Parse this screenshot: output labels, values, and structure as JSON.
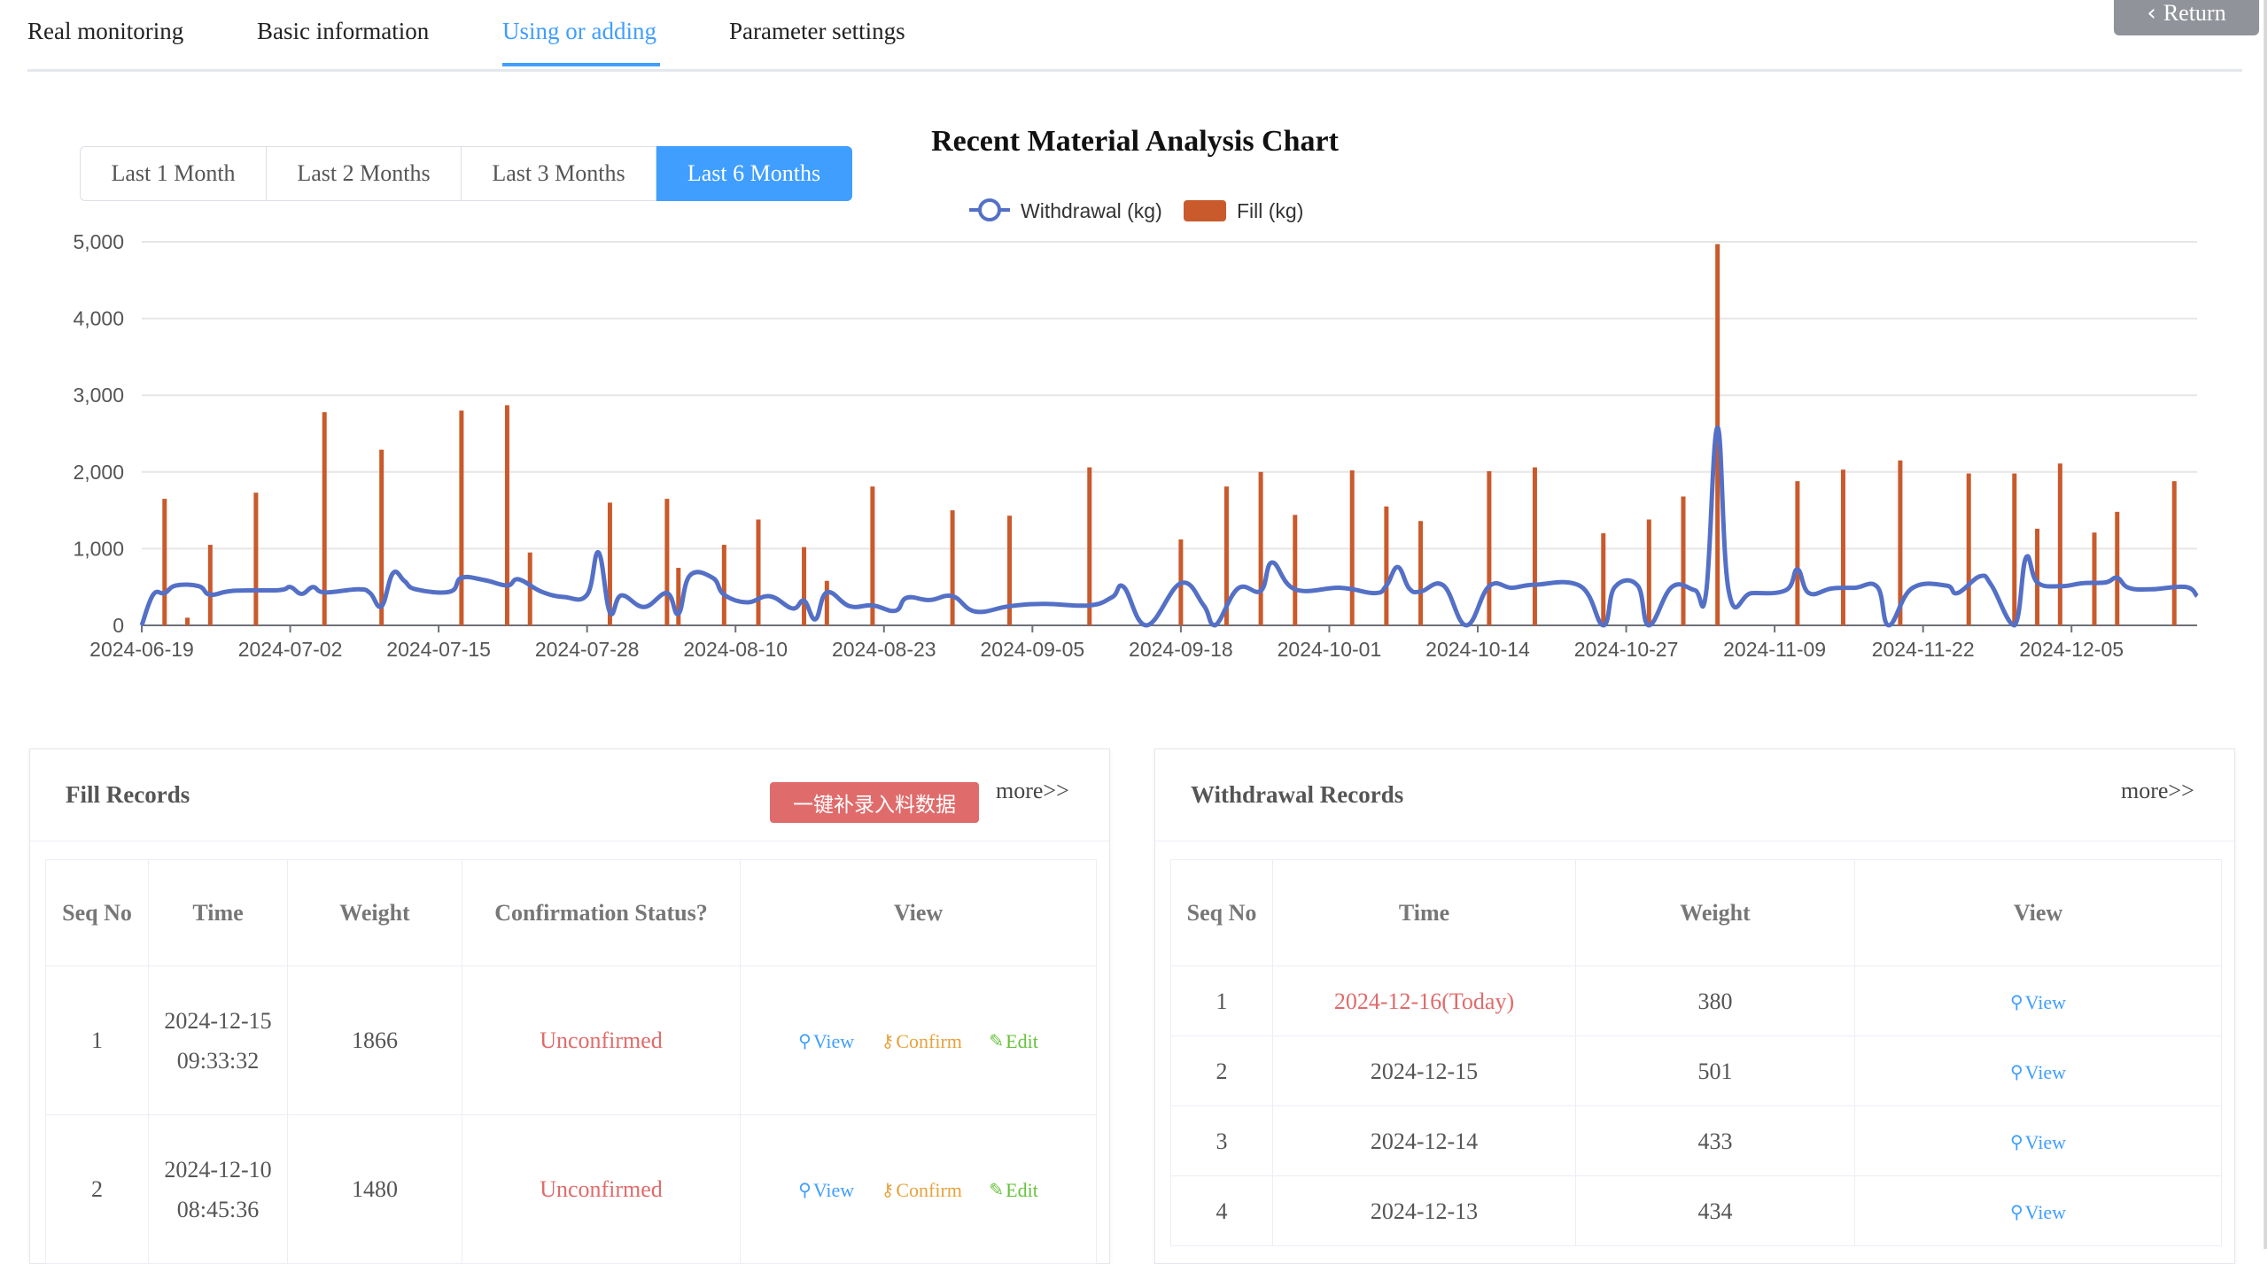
{
  "tabs": [
    {
      "label": "Real monitoring"
    },
    {
      "label": "Basic information"
    },
    {
      "label": "Using or adding"
    },
    {
      "label": "Parameter settings"
    }
  ],
  "return_label": "Return",
  "range_buttons": [
    "Last 1 Month",
    "Last 2 Months",
    "Last 3 Months",
    "Last 6 Months"
  ],
  "active_range": "Last 6 Months",
  "chart_data": {
    "type": "bar+line",
    "title": "Recent Material Analysis Chart",
    "legend": [
      "Withdrawal (kg)",
      "Fill (kg)"
    ],
    "legend_position": "top-center",
    "grid": true,
    "ylim": [
      0,
      5000
    ],
    "yticks": [
      "0",
      "1,000",
      "2,000",
      "3,000",
      "4,000",
      "5,000"
    ],
    "x_range": [
      "2024-06-19",
      "2024-12-16"
    ],
    "xticks": [
      "2024-06-19",
      "2024-07-02",
      "2024-07-15",
      "2024-07-28",
      "2024-08-10",
      "2024-08-23",
      "2024-09-05",
      "2024-09-18",
      "2024-10-01",
      "2024-10-14",
      "2024-10-27",
      "2024-11-09",
      "2024-11-22",
      "2024-12-05"
    ],
    "colors": {
      "withdrawal": "#5470c6",
      "fill": "#c95a2c"
    },
    "series": [
      {
        "name": "Fill (kg)",
        "type": "bar",
        "points": [
          [
            "2024-06-21",
            1650
          ],
          [
            "2024-06-23",
            100
          ],
          [
            "2024-06-25",
            1050
          ],
          [
            "2024-06-29",
            1730
          ],
          [
            "2024-07-05",
            2780
          ],
          [
            "2024-07-10",
            2290
          ],
          [
            "2024-07-17",
            2800
          ],
          [
            "2024-07-21",
            2870
          ],
          [
            "2024-07-23",
            950
          ],
          [
            "2024-07-30",
            1600
          ],
          [
            "2024-08-04",
            1650
          ],
          [
            "2024-08-05",
            750
          ],
          [
            "2024-08-09",
            1050
          ],
          [
            "2024-08-12",
            1380
          ],
          [
            "2024-08-16",
            1020
          ],
          [
            "2024-08-18",
            580
          ],
          [
            "2024-08-22",
            1810
          ],
          [
            "2024-08-29",
            1500
          ],
          [
            "2024-09-03",
            1430
          ],
          [
            "2024-09-10",
            2060
          ],
          [
            "2024-09-18",
            1120
          ],
          [
            "2024-09-22",
            1810
          ],
          [
            "2024-09-25",
            2000
          ],
          [
            "2024-09-28",
            1440
          ],
          [
            "2024-10-03",
            2020
          ],
          [
            "2024-10-06",
            1550
          ],
          [
            "2024-10-09",
            1360
          ],
          [
            "2024-10-15",
            2010
          ],
          [
            "2024-10-19",
            2060
          ],
          [
            "2024-10-25",
            1200
          ],
          [
            "2024-10-29",
            1380
          ],
          [
            "2024-11-01",
            1680
          ],
          [
            "2024-11-04",
            4970
          ],
          [
            "2024-11-11",
            1880
          ],
          [
            "2024-11-15",
            2030
          ],
          [
            "2024-11-20",
            2150
          ],
          [
            "2024-11-26",
            1980
          ],
          [
            "2024-11-30",
            1980
          ],
          [
            "2024-12-02",
            1260
          ],
          [
            "2024-12-04",
            2110
          ],
          [
            "2024-12-07",
            1210
          ],
          [
            "2024-12-09",
            1480
          ],
          [
            "2024-12-14",
            1880
          ]
        ]
      },
      {
        "name": "Withdrawal (kg)",
        "type": "line",
        "points": [
          [
            "2024-06-19",
            0
          ],
          [
            "2024-06-20",
            400
          ],
          [
            "2024-06-21",
            420
          ],
          [
            "2024-06-22",
            520
          ],
          [
            "2024-06-24",
            510
          ],
          [
            "2024-06-25",
            400
          ],
          [
            "2024-06-27",
            450
          ],
          [
            "2024-07-01",
            460
          ],
          [
            "2024-07-02",
            500
          ],
          [
            "2024-07-03",
            410
          ],
          [
            "2024-07-04",
            500
          ],
          [
            "2024-07-05",
            430
          ],
          [
            "2024-07-08",
            470
          ],
          [
            "2024-07-09",
            420
          ],
          [
            "2024-07-10",
            250
          ],
          [
            "2024-07-11",
            680
          ],
          [
            "2024-07-12",
            580
          ],
          [
            "2024-07-13",
            470
          ],
          [
            "2024-07-16",
            440
          ],
          [
            "2024-07-17",
            620
          ],
          [
            "2024-07-19",
            590
          ],
          [
            "2024-07-21",
            520
          ],
          [
            "2024-07-22",
            600
          ],
          [
            "2024-07-24",
            440
          ],
          [
            "2024-07-26",
            370
          ],
          [
            "2024-07-28",
            400
          ],
          [
            "2024-07-29",
            950
          ],
          [
            "2024-07-30",
            170
          ],
          [
            "2024-07-31",
            390
          ],
          [
            "2024-08-02",
            240
          ],
          [
            "2024-08-04",
            420
          ],
          [
            "2024-08-05",
            150
          ],
          [
            "2024-08-06",
            650
          ],
          [
            "2024-08-08",
            620
          ],
          [
            "2024-08-09",
            400
          ],
          [
            "2024-08-11",
            300
          ],
          [
            "2024-08-13",
            380
          ],
          [
            "2024-08-15",
            220
          ],
          [
            "2024-08-16",
            320
          ],
          [
            "2024-08-17",
            80
          ],
          [
            "2024-08-18",
            430
          ],
          [
            "2024-08-20",
            250
          ],
          [
            "2024-08-22",
            260
          ],
          [
            "2024-08-24",
            190
          ],
          [
            "2024-08-25",
            360
          ],
          [
            "2024-08-27",
            330
          ],
          [
            "2024-08-29",
            380
          ],
          [
            "2024-08-31",
            180
          ],
          [
            "2024-09-03",
            250
          ],
          [
            "2024-09-06",
            280
          ],
          [
            "2024-09-10",
            260
          ],
          [
            "2024-09-12",
            370
          ],
          [
            "2024-09-13",
            500
          ],
          [
            "2024-09-15",
            0
          ],
          [
            "2024-09-18",
            550
          ],
          [
            "2024-09-20",
            260
          ],
          [
            "2024-09-21",
            0
          ],
          [
            "2024-09-23",
            480
          ],
          [
            "2024-09-25",
            450
          ],
          [
            "2024-09-26",
            820
          ],
          [
            "2024-09-28",
            470
          ],
          [
            "2024-10-02",
            490
          ],
          [
            "2024-10-05",
            420
          ],
          [
            "2024-10-06",
            520
          ],
          [
            "2024-10-07",
            760
          ],
          [
            "2024-10-08",
            480
          ],
          [
            "2024-10-09",
            440
          ],
          [
            "2024-10-11",
            520
          ],
          [
            "2024-10-13",
            0
          ],
          [
            "2024-10-15",
            510
          ],
          [
            "2024-10-17",
            490
          ],
          [
            "2024-10-19",
            530
          ],
          [
            "2024-10-23",
            510
          ],
          [
            "2024-10-25",
            0
          ],
          [
            "2024-10-26",
            500
          ],
          [
            "2024-10-28",
            520
          ],
          [
            "2024-10-29",
            0
          ],
          [
            "2024-10-31",
            500
          ],
          [
            "2024-11-02",
            460
          ],
          [
            "2024-11-03",
            430
          ],
          [
            "2024-11-04",
            2580
          ],
          [
            "2024-11-05",
            430
          ],
          [
            "2024-11-07",
            420
          ],
          [
            "2024-11-10",
            460
          ],
          [
            "2024-11-11",
            730
          ],
          [
            "2024-11-12",
            420
          ],
          [
            "2024-11-14",
            480
          ],
          [
            "2024-11-16",
            490
          ],
          [
            "2024-11-18",
            500
          ],
          [
            "2024-11-19",
            0
          ],
          [
            "2024-11-21",
            480
          ],
          [
            "2024-11-24",
            520
          ],
          [
            "2024-11-25",
            420
          ],
          [
            "2024-11-27",
            640
          ],
          [
            "2024-11-28",
            520
          ],
          [
            "2024-11-30",
            0
          ],
          [
            "2024-12-01",
            880
          ],
          [
            "2024-12-02",
            560
          ],
          [
            "2024-12-04",
            510
          ],
          [
            "2024-12-06",
            550
          ],
          [
            "2024-12-08",
            560
          ],
          [
            "2024-12-09",
            620
          ],
          [
            "2024-12-10",
            490
          ],
          [
            "2024-12-12",
            470
          ],
          [
            "2024-12-15",
            501
          ],
          [
            "2024-12-16",
            380
          ]
        ]
      }
    ]
  },
  "fill_records": {
    "title": "Fill Records",
    "quick_button": "一键补录入料数据",
    "more": "more>>",
    "headers": [
      "Seq No",
      "Time",
      "Weight",
      "Confirmation Status?",
      "View"
    ],
    "actions": {
      "view": "View",
      "confirm": "Confirm",
      "edit": "Edit"
    },
    "rows": [
      {
        "seq": "1",
        "time": "2024-12-15 09:33:32",
        "weight": "1866",
        "status": "Unconfirmed"
      },
      {
        "seq": "2",
        "time": "2024-12-10 08:45:36",
        "weight": "1480",
        "status": "Unconfirmed"
      }
    ]
  },
  "withdrawal_records": {
    "title": "Withdrawal Records",
    "more": "more>>",
    "headers": [
      "Seq No",
      "Time",
      "Weight",
      "View"
    ],
    "action": "View",
    "rows": [
      {
        "seq": "1",
        "time": "2024-12-16(Today)",
        "weight": "380",
        "today": true
      },
      {
        "seq": "2",
        "time": "2024-12-15",
        "weight": "501",
        "today": false
      },
      {
        "seq": "3",
        "time": "2024-12-14",
        "weight": "433",
        "today": false
      },
      {
        "seq": "4",
        "time": "2024-12-13",
        "weight": "434",
        "today": false
      }
    ]
  }
}
